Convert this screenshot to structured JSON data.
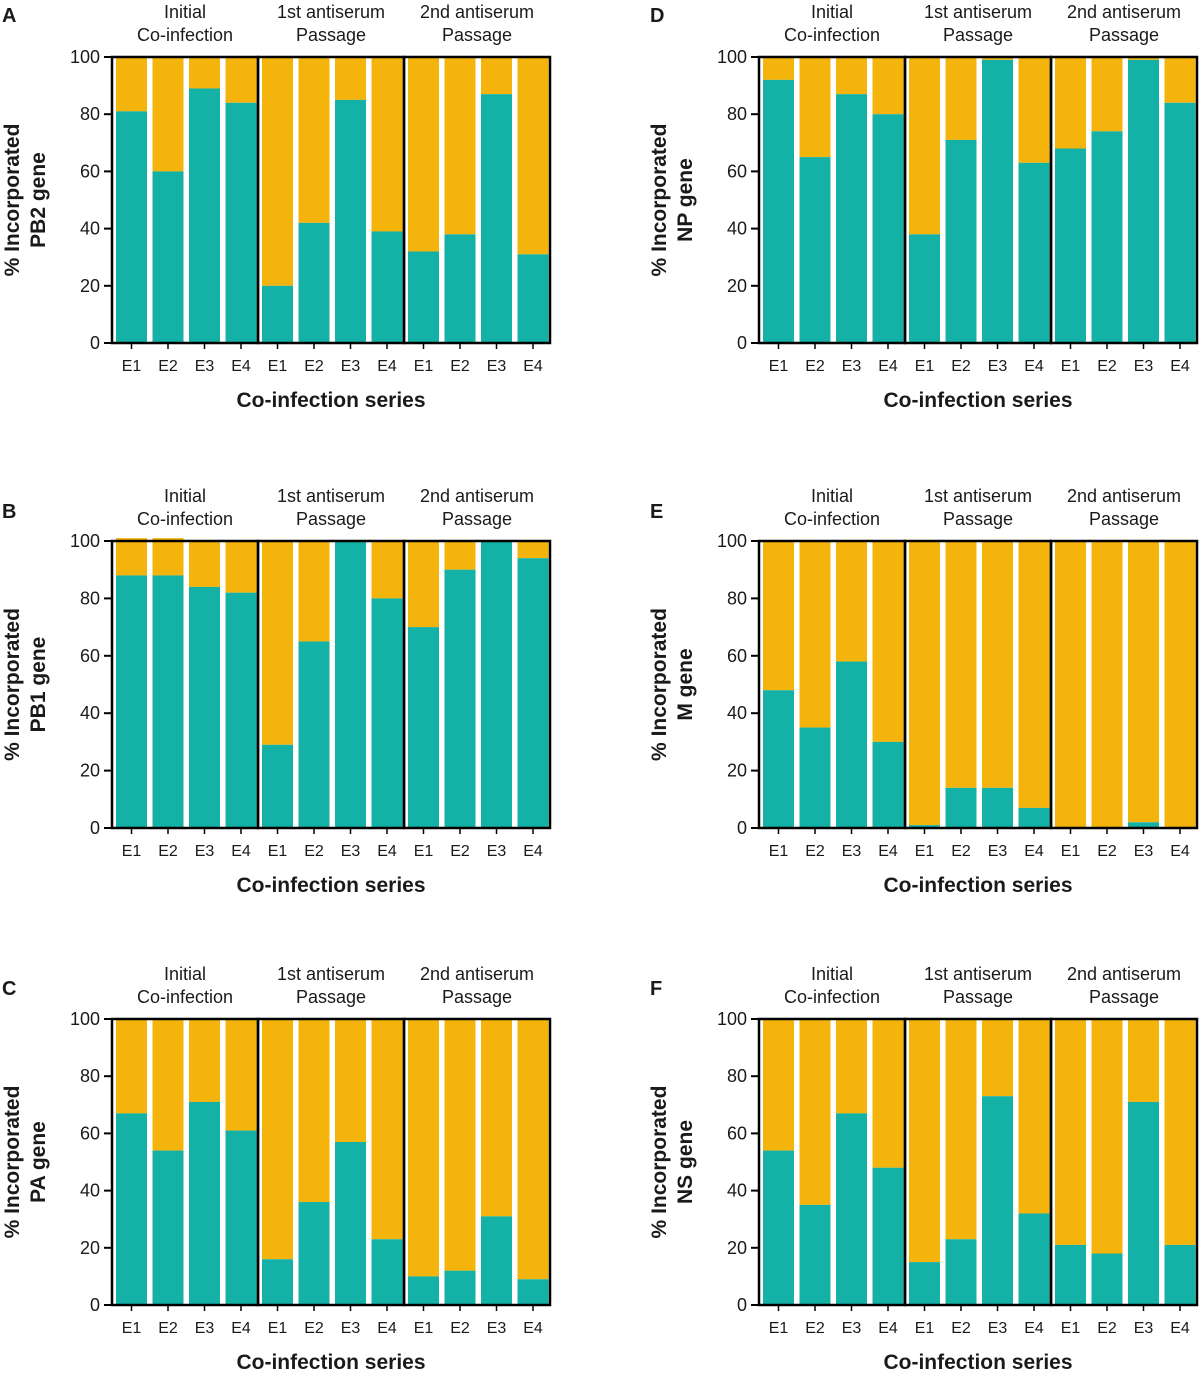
{
  "figure": {
    "colors": {
      "incorporated": "#14b1a6",
      "other": "#f5b40b",
      "frame": "#000000"
    },
    "groups": [
      {
        "line1": "Initial",
        "line2": "Co-infection"
      },
      {
        "line1": "1st antiserum",
        "line2": "Passage"
      },
      {
        "line1": "2nd antiserum",
        "line2": "Passage"
      }
    ]
  },
  "chart_data": [
    {
      "panel": "A",
      "type": "bar",
      "stacked": true,
      "ylabel_line1": "% Incorporated",
      "ylabel_line2": "PB2 gene",
      "xlabel": "Co-infection series",
      "ylim": [
        0,
        100
      ],
      "yticks": [
        0,
        20,
        40,
        60,
        80,
        100
      ],
      "categories": [
        "E1",
        "E2",
        "E3",
        "E4"
      ],
      "values": [
        [
          81,
          60,
          89,
          84
        ],
        [
          20,
          42,
          85,
          39
        ],
        [
          32,
          38,
          87,
          31
        ]
      ]
    },
    {
      "panel": "B",
      "type": "bar",
      "stacked": true,
      "ylabel_line1": "% Incorporated",
      "ylabel_line2": "PB1 gene",
      "xlabel": "Co-infection series",
      "ylim": [
        0,
        100
      ],
      "yticks": [
        0,
        20,
        40,
        60,
        80,
        100
      ],
      "categories": [
        "E1",
        "E2",
        "E3",
        "E4"
      ],
      "values": [
        [
          88,
          88,
          84,
          82
        ],
        [
          29,
          65,
          100,
          80
        ],
        [
          70,
          90,
          100,
          94
        ]
      ],
      "totals": [
        [
          101,
          101,
          100,
          100
        ],
        [
          100,
          100,
          100,
          100
        ],
        [
          100,
          100,
          100,
          100
        ]
      ]
    },
    {
      "panel": "C",
      "type": "bar",
      "stacked": true,
      "ylabel_line1": "% Incorporated",
      "ylabel_line2": "PA gene",
      "xlabel": "Co-infection series",
      "ylim": [
        0,
        100
      ],
      "yticks": [
        0,
        20,
        40,
        60,
        80,
        100
      ],
      "categories": [
        "E1",
        "E2",
        "E3",
        "E4"
      ],
      "values": [
        [
          67,
          54,
          71,
          61
        ],
        [
          16,
          36,
          57,
          23
        ],
        [
          10,
          12,
          31,
          9
        ]
      ]
    },
    {
      "panel": "D",
      "type": "bar",
      "stacked": true,
      "ylabel_line1": "% Incorporated",
      "ylabel_line2": "NP gene",
      "xlabel": "Co-infection series",
      "ylim": [
        0,
        100
      ],
      "yticks": [
        0,
        20,
        40,
        60,
        80,
        100
      ],
      "categories": [
        "E1",
        "E2",
        "E3",
        "E4"
      ],
      "values": [
        [
          92,
          65,
          87,
          80
        ],
        [
          38,
          71,
          99,
          63
        ],
        [
          68,
          74,
          99,
          84
        ]
      ]
    },
    {
      "panel": "E",
      "type": "bar",
      "stacked": true,
      "ylabel_line1": "% Incorporated",
      "ylabel_line2": "M gene",
      "xlabel": "Co-infection series",
      "ylim": [
        0,
        100
      ],
      "yticks": [
        0,
        20,
        40,
        60,
        80,
        100
      ],
      "categories": [
        "E1",
        "E2",
        "E3",
        "E4"
      ],
      "values": [
        [
          48,
          35,
          58,
          30
        ],
        [
          1,
          14,
          14,
          7
        ],
        [
          0,
          0,
          2,
          0
        ]
      ]
    },
    {
      "panel": "F",
      "type": "bar",
      "stacked": true,
      "ylabel_line1": "% Incorporated",
      "ylabel_line2": "NS gene",
      "xlabel": "Co-infection series",
      "ylim": [
        0,
        100
      ],
      "yticks": [
        0,
        20,
        40,
        60,
        80,
        100
      ],
      "categories": [
        "E1",
        "E2",
        "E3",
        "E4"
      ],
      "values": [
        [
          54,
          35,
          67,
          48
        ],
        [
          15,
          23,
          73,
          32
        ],
        [
          21,
          18,
          71,
          21
        ]
      ]
    }
  ]
}
